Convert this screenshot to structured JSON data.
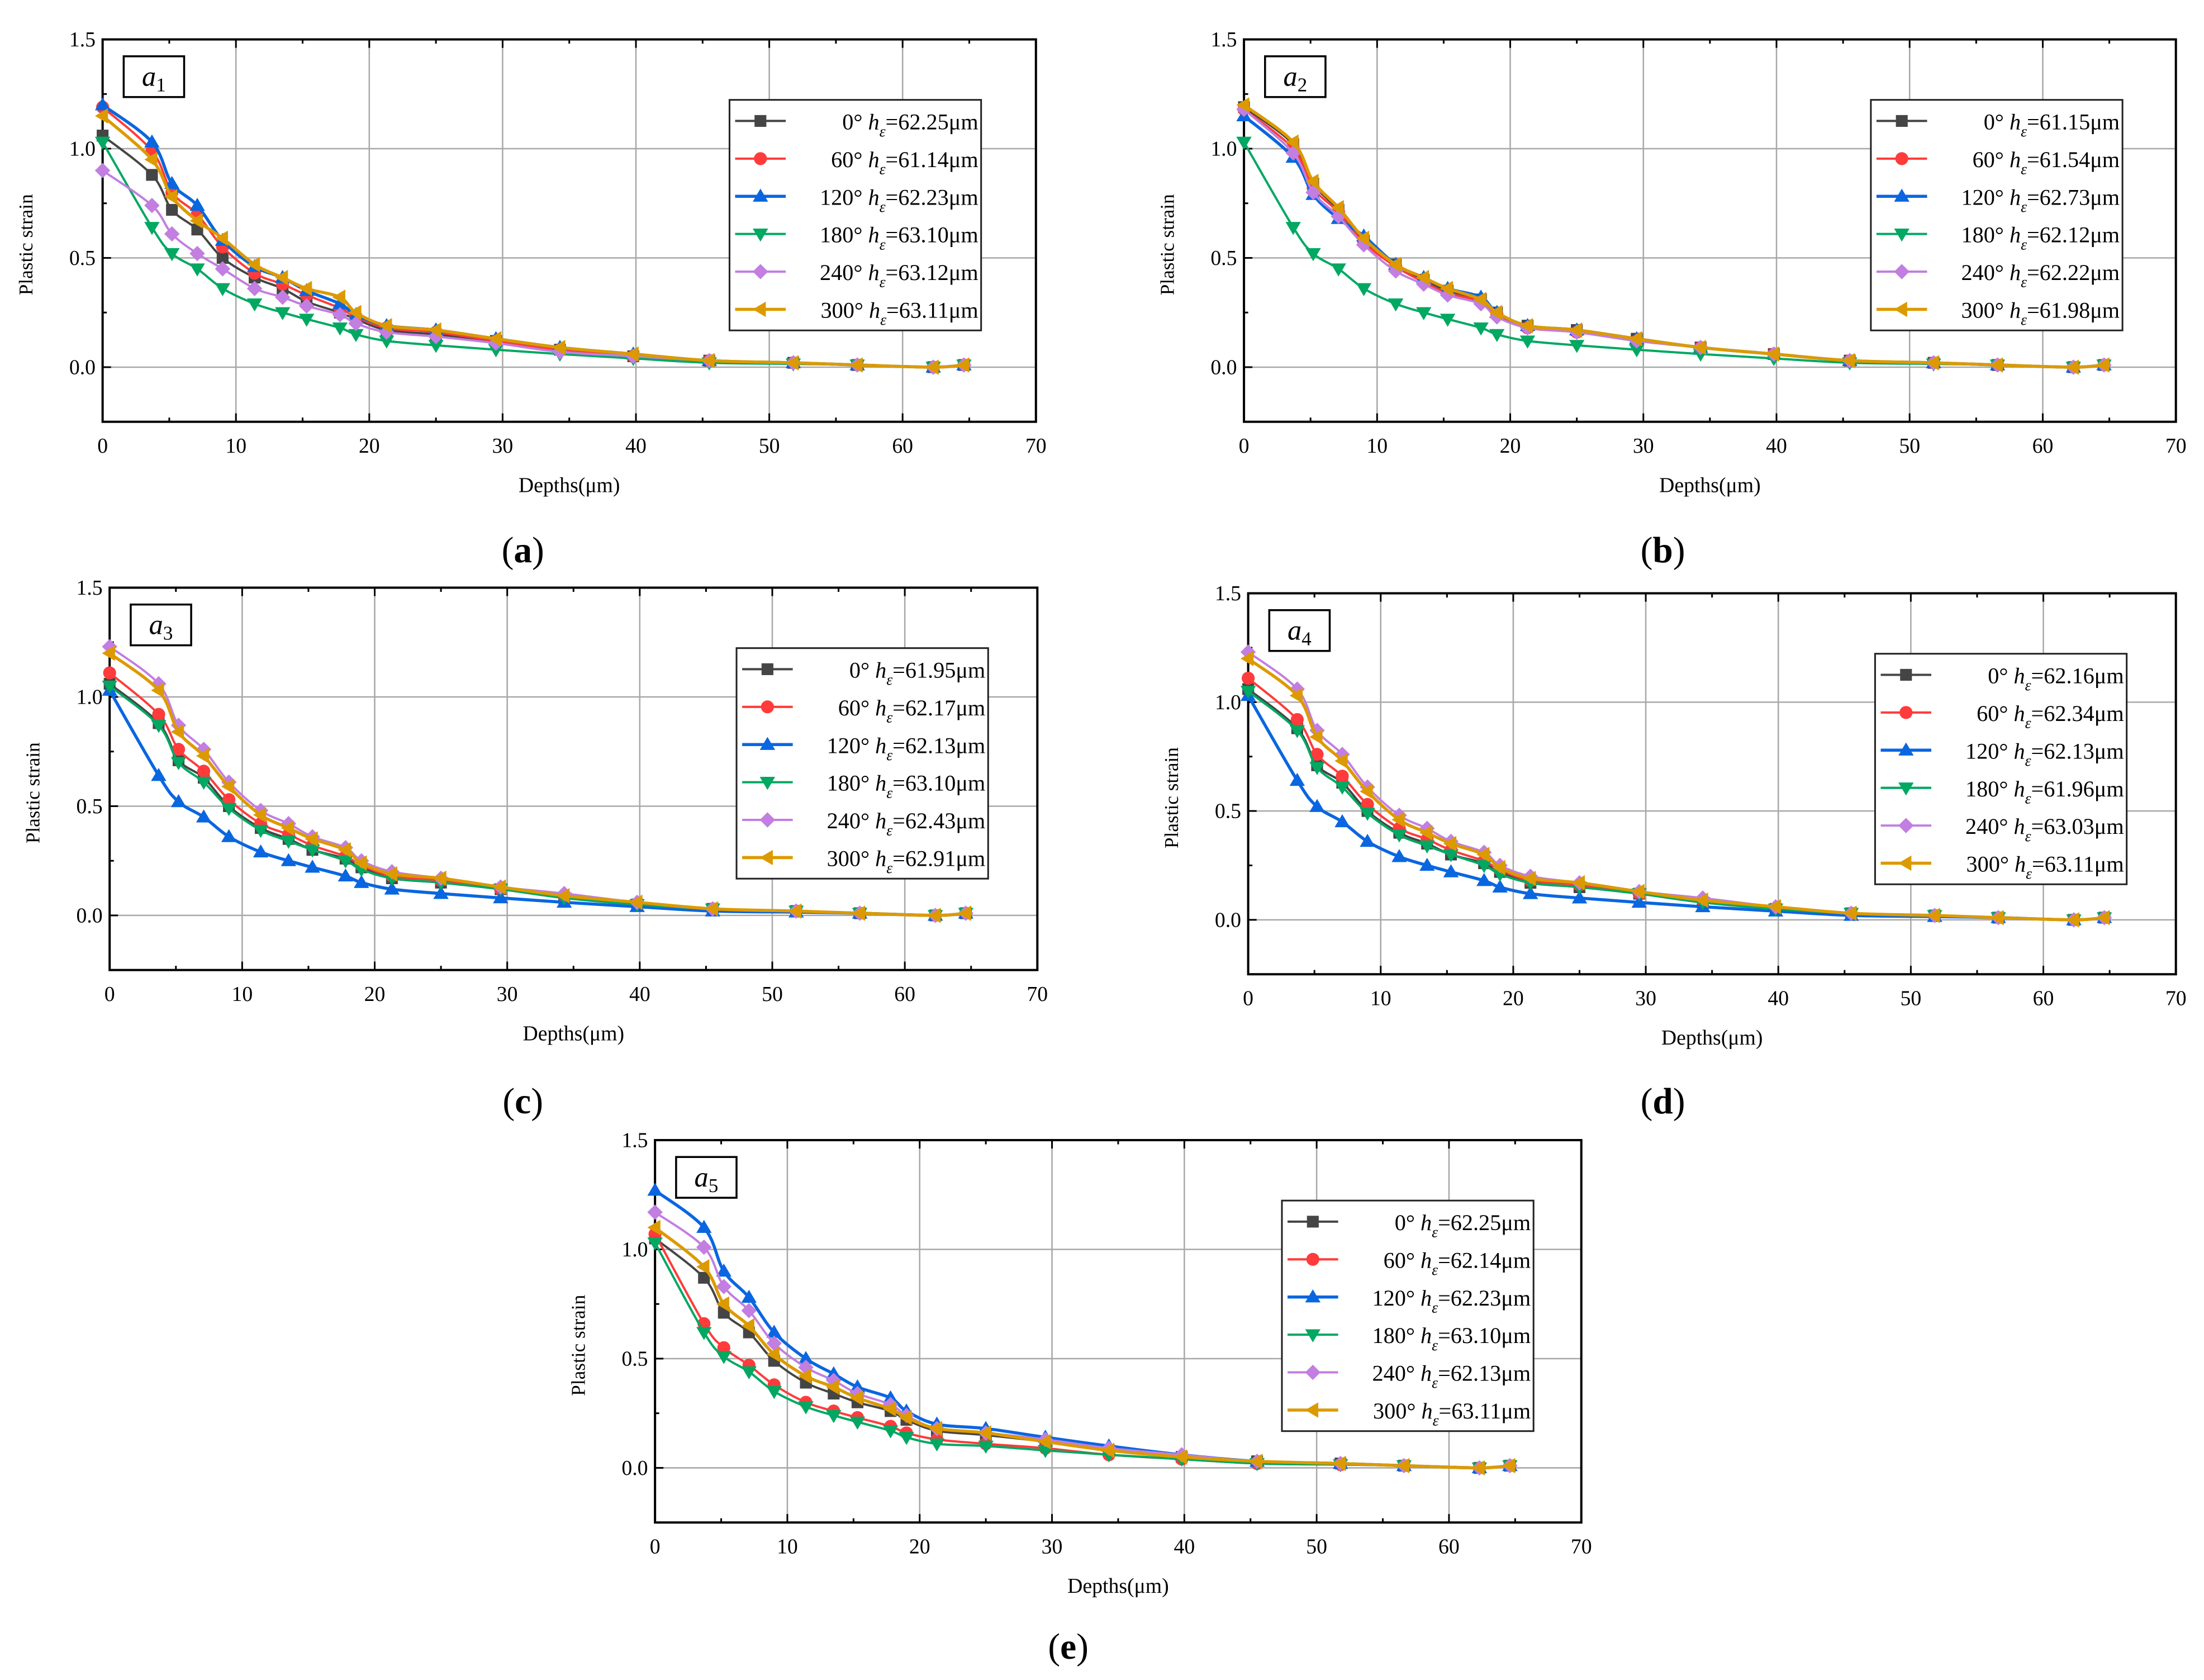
{
  "chart_data": {
    "type": "line",
    "shared": {
      "xlabel": "Depths(μm)",
      "ylabel": "Plastic strain",
      "xlim": [
        0,
        70
      ],
      "ylim": [
        -0.25,
        1.5
      ],
      "xticks": [
        "0",
        "10",
        "20",
        "30",
        "40",
        "50",
        "60",
        "70"
      ],
      "yticks": [
        "0.0",
        "0.5",
        "1.0",
        "1.5"
      ],
      "grid": true,
      "legend_placement": "top-right",
      "legend_symbol": "h",
      "legend_subscript": "ε",
      "legend_unit": "μm",
      "x": [
        0,
        3.7,
        5.2,
        7.1,
        9,
        11.4,
        13.5,
        15.3,
        17.8,
        19,
        21.3,
        25,
        29.5,
        34.3,
        39.8,
        45.5,
        51.8,
        56.6,
        62.3,
        64.6
      ],
      "series_styles": [
        {
          "angle": "0°",
          "color": "#454545",
          "marker": "square"
        },
        {
          "angle": "60°",
          "color": "#ff3b3b",
          "marker": "circle"
        },
        {
          "angle": "120°",
          "color": "#0a66e0",
          "marker": "triangle-up"
        },
        {
          "angle": "180°",
          "color": "#00a862",
          "marker": "triangle-down"
        },
        {
          "angle": "240°",
          "color": "#c27ee0",
          "marker": "diamond"
        },
        {
          "angle": "300°",
          "color": "#dc9a00",
          "marker": "triangle-left"
        }
      ]
    },
    "panels": [
      {
        "caption": "a",
        "tag": "a",
        "tag_sub": "1",
        "series": [
          {
            "name": "0°",
            "h": "62.25",
            "values": [
              1.06,
              0.88,
              0.72,
              0.63,
              0.5,
              0.41,
              0.36,
              0.3,
              0.25,
              0.22,
              0.17,
              0.15,
              0.12,
              0.08,
              0.05,
              0.03,
              0.02,
              0.01,
              0.0,
              0.01
            ]
          },
          {
            "name": "60°",
            "h": "61.14",
            "values": [
              1.19,
              0.99,
              0.8,
              0.7,
              0.55,
              0.43,
              0.38,
              0.33,
              0.27,
              0.23,
              0.18,
              0.16,
              0.12,
              0.08,
              0.05,
              0.03,
              0.02,
              0.01,
              0.0,
              0.01
            ]
          },
          {
            "name": "120°",
            "h": "62.23",
            "values": [
              1.2,
              1.03,
              0.84,
              0.74,
              0.58,
              0.46,
              0.41,
              0.35,
              0.29,
              0.24,
              0.19,
              0.17,
              0.13,
              0.09,
              0.06,
              0.03,
              0.02,
              0.01,
              0.0,
              0.01
            ]
          },
          {
            "name": "180°",
            "h": "63.10",
            "values": [
              1.03,
              0.64,
              0.52,
              0.45,
              0.36,
              0.29,
              0.25,
              0.22,
              0.18,
              0.15,
              0.12,
              0.1,
              0.08,
              0.06,
              0.04,
              0.02,
              0.015,
              0.01,
              0.0,
              0.01
            ]
          },
          {
            "name": "240°",
            "h": "63.12",
            "values": [
              0.9,
              0.74,
              0.61,
              0.52,
              0.45,
              0.36,
              0.32,
              0.28,
              0.24,
              0.2,
              0.16,
              0.14,
              0.11,
              0.07,
              0.05,
              0.03,
              0.02,
              0.01,
              0.0,
              0.01
            ]
          },
          {
            "name": "300°",
            "h": "63.11",
            "values": [
              1.15,
              0.95,
              0.78,
              0.67,
              0.59,
              0.47,
              0.41,
              0.36,
              0.32,
              0.25,
              0.19,
              0.17,
              0.13,
              0.09,
              0.06,
              0.03,
              0.02,
              0.01,
              0.0,
              0.01
            ]
          }
        ]
      },
      {
        "caption": "b",
        "tag": "a",
        "tag_sub": "2",
        "series": [
          {
            "name": "0°",
            "h": "61.15",
            "values": [
              1.19,
              1.02,
              0.84,
              0.72,
              0.58,
              0.47,
              0.4,
              0.35,
              0.31,
              0.25,
              0.19,
              0.17,
              0.13,
              0.09,
              0.06,
              0.03,
              0.02,
              0.01,
              0.0,
              0.01
            ]
          },
          {
            "name": "60°",
            "h": "61.54",
            "values": [
              1.18,
              1.0,
              0.82,
              0.71,
              0.57,
              0.46,
              0.39,
              0.34,
              0.3,
              0.24,
              0.18,
              0.16,
              0.12,
              0.09,
              0.06,
              0.03,
              0.02,
              0.01,
              0.0,
              0.01
            ]
          },
          {
            "name": "120°",
            "h": "62.73",
            "values": [
              1.15,
              0.96,
              0.79,
              0.68,
              0.6,
              0.47,
              0.41,
              0.36,
              0.32,
              0.25,
              0.19,
              0.17,
              0.13,
              0.09,
              0.06,
              0.03,
              0.02,
              0.01,
              0.0,
              0.01
            ]
          },
          {
            "name": "180°",
            "h": "62.12",
            "values": [
              1.03,
              0.64,
              0.52,
              0.45,
              0.36,
              0.29,
              0.25,
              0.22,
              0.18,
              0.15,
              0.12,
              0.1,
              0.08,
              0.06,
              0.04,
              0.02,
              0.015,
              0.01,
              0.0,
              0.01
            ]
          },
          {
            "name": "240°",
            "h": "62.22",
            "values": [
              1.18,
              0.98,
              0.8,
              0.69,
              0.56,
              0.44,
              0.38,
              0.33,
              0.29,
              0.23,
              0.18,
              0.16,
              0.12,
              0.09,
              0.06,
              0.03,
              0.02,
              0.01,
              0.0,
              0.01
            ]
          },
          {
            "name": "300°",
            "h": "61.98",
            "values": [
              1.2,
              1.03,
              0.85,
              0.73,
              0.59,
              0.47,
              0.41,
              0.36,
              0.31,
              0.25,
              0.19,
              0.17,
              0.13,
              0.09,
              0.06,
              0.03,
              0.02,
              0.01,
              0.0,
              0.01
            ]
          }
        ]
      },
      {
        "caption": "c",
        "tag": "a",
        "tag_sub": "3",
        "series": [
          {
            "name": "0°",
            "h": "61.95",
            "values": [
              1.06,
              0.88,
              0.71,
              0.63,
              0.5,
              0.4,
              0.35,
              0.3,
              0.26,
              0.22,
              0.17,
              0.15,
              0.12,
              0.08,
              0.05,
              0.03,
              0.02,
              0.01,
              0.0,
              0.01
            ]
          },
          {
            "name": "60°",
            "h": "62.17",
            "values": [
              1.11,
              0.92,
              0.76,
              0.66,
              0.53,
              0.42,
              0.37,
              0.32,
              0.27,
              0.23,
              0.18,
              0.16,
              0.12,
              0.09,
              0.05,
              0.03,
              0.02,
              0.01,
              0.0,
              0.01
            ]
          },
          {
            "name": "120°",
            "h": "62.13",
            "values": [
              1.03,
              0.64,
              0.52,
              0.45,
              0.36,
              0.29,
              0.25,
              0.22,
              0.18,
              0.15,
              0.12,
              0.1,
              0.08,
              0.06,
              0.04,
              0.02,
              0.015,
              0.01,
              0.0,
              0.01
            ]
          },
          {
            "name": "180°",
            "h": "63.10",
            "values": [
              1.05,
              0.87,
              0.7,
              0.61,
              0.49,
              0.39,
              0.34,
              0.3,
              0.25,
              0.21,
              0.17,
              0.15,
              0.12,
              0.08,
              0.05,
              0.03,
              0.02,
              0.01,
              0.0,
              0.01
            ]
          },
          {
            "name": "240°",
            "h": "62.43",
            "values": [
              1.23,
              1.06,
              0.87,
              0.76,
              0.61,
              0.48,
              0.42,
              0.36,
              0.31,
              0.25,
              0.2,
              0.17,
              0.13,
              0.1,
              0.06,
              0.03,
              0.02,
              0.01,
              0.0,
              0.01
            ]
          },
          {
            "name": "300°",
            "h": "62.91",
            "values": [
              1.2,
              1.03,
              0.84,
              0.73,
              0.59,
              0.46,
              0.4,
              0.35,
              0.3,
              0.24,
              0.19,
              0.17,
              0.13,
              0.09,
              0.06,
              0.03,
              0.02,
              0.01,
              0.0,
              0.01
            ]
          }
        ]
      },
      {
        "caption": "d",
        "tag": "a",
        "tag_sub": "4",
        "series": [
          {
            "name": "0°",
            "h": "62.16",
            "values": [
              1.06,
              0.88,
              0.71,
              0.63,
              0.5,
              0.4,
              0.35,
              0.3,
              0.26,
              0.22,
              0.17,
              0.15,
              0.12,
              0.08,
              0.05,
              0.03,
              0.02,
              0.01,
              0.0,
              0.01
            ]
          },
          {
            "name": "60°",
            "h": "62.34",
            "values": [
              1.11,
              0.92,
              0.76,
              0.66,
              0.53,
              0.42,
              0.37,
              0.32,
              0.27,
              0.23,
              0.18,
              0.16,
              0.12,
              0.09,
              0.05,
              0.03,
              0.02,
              0.01,
              0.0,
              0.01
            ]
          },
          {
            "name": "120°",
            "h": "62.13",
            "values": [
              1.03,
              0.64,
              0.52,
              0.45,
              0.36,
              0.29,
              0.25,
              0.22,
              0.18,
              0.15,
              0.12,
              0.1,
              0.08,
              0.06,
              0.04,
              0.02,
              0.015,
              0.01,
              0.0,
              0.01
            ]
          },
          {
            "name": "180°",
            "h": "61.96",
            "values": [
              1.05,
              0.87,
              0.7,
              0.61,
              0.49,
              0.39,
              0.34,
              0.3,
              0.25,
              0.21,
              0.17,
              0.15,
              0.12,
              0.08,
              0.05,
              0.03,
              0.02,
              0.01,
              0.0,
              0.01
            ]
          },
          {
            "name": "240°",
            "h": "63.03",
            "values": [
              1.23,
              1.06,
              0.87,
              0.76,
              0.61,
              0.48,
              0.42,
              0.36,
              0.31,
              0.25,
              0.2,
              0.17,
              0.13,
              0.1,
              0.06,
              0.03,
              0.02,
              0.01,
              0.0,
              0.01
            ]
          },
          {
            "name": "300°",
            "h": "63.11",
            "values": [
              1.2,
              1.03,
              0.84,
              0.73,
              0.59,
              0.46,
              0.4,
              0.35,
              0.3,
              0.24,
              0.19,
              0.17,
              0.13,
              0.09,
              0.06,
              0.03,
              0.02,
              0.01,
              0.0,
              0.01
            ]
          }
        ]
      },
      {
        "caption": "e",
        "tag": "a",
        "tag_sub": "5",
        "series": [
          {
            "name": "0°",
            "h": "62.25",
            "values": [
              1.05,
              0.87,
              0.71,
              0.62,
              0.49,
              0.39,
              0.34,
              0.3,
              0.26,
              0.22,
              0.17,
              0.15,
              0.12,
              0.08,
              0.05,
              0.03,
              0.02,
              0.01,
              0.0,
              0.01
            ]
          },
          {
            "name": "60°",
            "h": "62.14",
            "values": [
              1.07,
              0.66,
              0.55,
              0.47,
              0.38,
              0.3,
              0.26,
              0.23,
              0.19,
              0.16,
              0.13,
              0.11,
              0.09,
              0.06,
              0.04,
              0.02,
              0.015,
              0.01,
              0.0,
              0.01
            ]
          },
          {
            "name": "120°",
            "h": "62.23",
            "values": [
              1.27,
              1.1,
              0.9,
              0.78,
              0.62,
              0.5,
              0.43,
              0.37,
              0.32,
              0.26,
              0.2,
              0.18,
              0.14,
              0.1,
              0.06,
              0.03,
              0.02,
              0.01,
              0.0,
              0.01
            ]
          },
          {
            "name": "180°",
            "h": "63.10",
            "values": [
              1.03,
              0.62,
              0.51,
              0.44,
              0.35,
              0.28,
              0.24,
              0.21,
              0.17,
              0.14,
              0.11,
              0.1,
              0.08,
              0.06,
              0.04,
              0.02,
              0.015,
              0.01,
              0.0,
              0.01
            ]
          },
          {
            "name": "240°",
            "h": "62.13",
            "values": [
              1.17,
              1.01,
              0.83,
              0.72,
              0.57,
              0.46,
              0.4,
              0.34,
              0.29,
              0.24,
              0.18,
              0.16,
              0.13,
              0.09,
              0.06,
              0.03,
              0.02,
              0.01,
              0.0,
              0.01
            ]
          },
          {
            "name": "300°",
            "h": "63.11",
            "values": [
              1.1,
              0.92,
              0.75,
              0.65,
              0.52,
              0.42,
              0.37,
              0.32,
              0.27,
              0.23,
              0.18,
              0.16,
              0.12,
              0.08,
              0.05,
              0.03,
              0.02,
              0.01,
              0.0,
              0.01
            ]
          }
        ]
      }
    ]
  }
}
